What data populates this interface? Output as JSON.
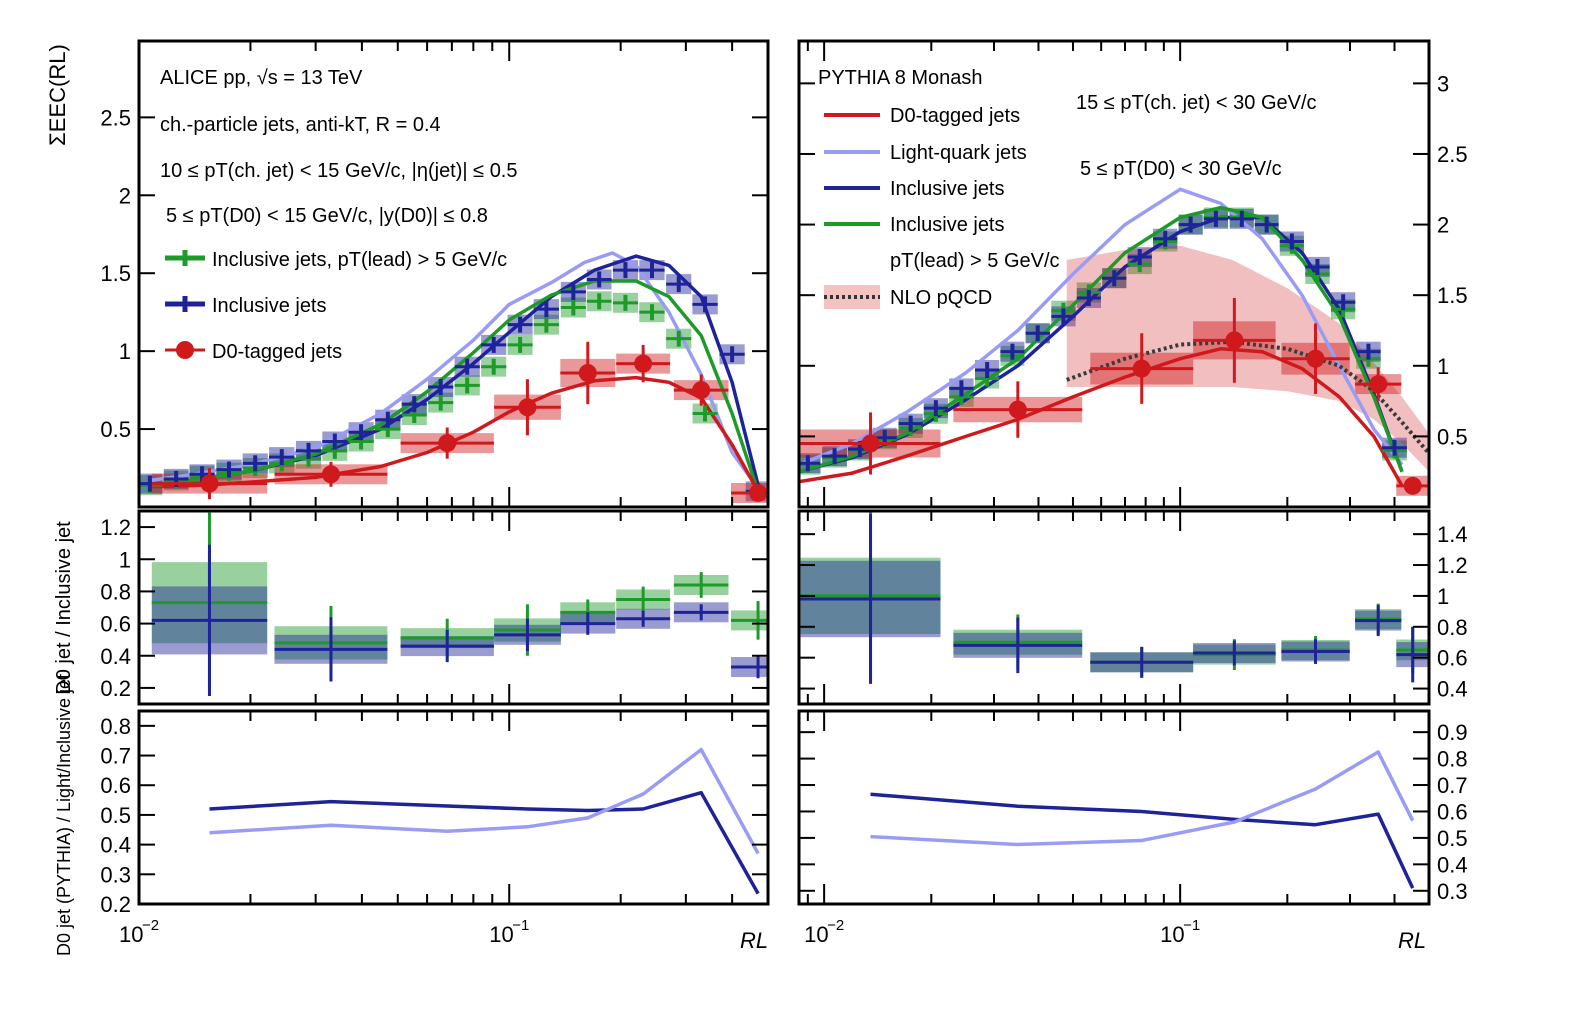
{
  "colors": {
    "d0": "#d0191d",
    "inclusive": "#1e2399",
    "inclusive_lead": "#1d9a27",
    "light": "#9a9bf5",
    "nlo": "#d0191d",
    "frame": "#000000"
  },
  "chart_data": [
    {
      "type": "line",
      "title": "ALICE pp, √s = 13 TeV — 10 ≤ pT(ch. jet) < 15 GeV/c",
      "panel": "top-left",
      "xscale": "log",
      "xlim": [
        0.01,
        0.5
      ],
      "ylim": [
        0,
        2.99
      ],
      "xlabel": "RL",
      "ylabel": "ΣEEC(RL)",
      "xticklabels": [
        "10^-2",
        "10^-1"
      ],
      "yticks": [
        0.5,
        1,
        1.5,
        2,
        2.5
      ],
      "annotations": {
        "experiment": "ALICE pp, √s = 13 TeV",
        "jets": "ch.-particle jets, anti-kT, R = 0.4",
        "jet_pt": "10 ≤ pT(ch. jet) < 15 GeV/c, |η(jet)| ≤ 0.5",
        "d0_pt": "5 ≤ pT(D0) < 15 GeV/c, |y(D0)| ≤ 0.8"
      },
      "legend": [
        "Inclusive jets, pT(lead) > 5 GeV/c",
        "Inclusive jets",
        "D0-tagged jets"
      ],
      "series": [
        {
          "name": "Inclusive jets, pT(lead) > 5 GeV/c",
          "kind": "points",
          "color_key": "inclusive_lead",
          "x": [
            0.0107,
            0.0126,
            0.0148,
            0.0175,
            0.0206,
            0.0243,
            0.0287,
            0.0338,
            0.0398,
            0.047,
            0.0554,
            0.0653,
            0.077,
            0.0908,
            0.107,
            0.126,
            0.149,
            0.175,
            0.206,
            0.243,
            0.287,
            0.338
          ],
          "values": [
            0.14,
            0.17,
            0.2,
            0.22,
            0.25,
            0.28,
            0.31,
            0.36,
            0.42,
            0.5,
            0.59,
            0.67,
            0.78,
            0.9,
            1.04,
            1.17,
            1.28,
            1.32,
            1.31,
            1.25,
            1.08,
            0.6
          ]
        },
        {
          "name": "Inclusive jets",
          "kind": "points",
          "color_key": "inclusive",
          "x": [
            0.0107,
            0.0126,
            0.0148,
            0.0175,
            0.0206,
            0.0243,
            0.0287,
            0.0338,
            0.0398,
            0.047,
            0.0554,
            0.0653,
            0.077,
            0.0908,
            0.107,
            0.126,
            0.149,
            0.175,
            0.206,
            0.243,
            0.287,
            0.338,
            0.4,
            0.47
          ],
          "values": [
            0.15,
            0.18,
            0.21,
            0.24,
            0.28,
            0.32,
            0.36,
            0.42,
            0.48,
            0.56,
            0.66,
            0.77,
            0.9,
            1.04,
            1.17,
            1.27,
            1.38,
            1.46,
            1.52,
            1.52,
            1.43,
            1.3,
            0.98,
            0.1
          ]
        },
        {
          "name": "D0-tagged jets",
          "kind": "points",
          "color_key": "d0",
          "x": [
            0.0155,
            0.033,
            0.068,
            0.112,
            0.163,
            0.23,
            0.33,
            0.47
          ],
          "values": [
            0.15,
            0.21,
            0.41,
            0.64,
            0.86,
            0.92,
            0.75,
            0.09
          ],
          "yerr": [
            0.1,
            0.08,
            0.1,
            0.18,
            0.2,
            0.12,
            0.1,
            0.04
          ]
        },
        {
          "name": "PYTHIA Light-quark",
          "kind": "line",
          "color_key": "light",
          "x": [
            0.0107,
            0.014,
            0.02,
            0.03,
            0.045,
            0.06,
            0.08,
            0.1,
            0.13,
            0.16,
            0.19,
            0.22,
            0.27,
            0.33,
            0.4,
            0.47
          ],
          "values": [
            0.17,
            0.21,
            0.27,
            0.38,
            0.6,
            0.82,
            1.07,
            1.3,
            1.44,
            1.57,
            1.63,
            1.55,
            1.25,
            0.85,
            0.35,
            0.12
          ]
        },
        {
          "name": "PYTHIA Inclusive",
          "kind": "line",
          "color_key": "inclusive",
          "x": [
            0.0107,
            0.015,
            0.02,
            0.03,
            0.045,
            0.06,
            0.08,
            0.1,
            0.13,
            0.17,
            0.22,
            0.27,
            0.33,
            0.4,
            0.47
          ],
          "values": [
            0.14,
            0.18,
            0.23,
            0.33,
            0.5,
            0.69,
            0.92,
            1.12,
            1.35,
            1.52,
            1.61,
            1.55,
            1.35,
            0.8,
            0.14
          ]
        },
        {
          "name": "PYTHIA Inclusive pT lead",
          "kind": "line",
          "color_key": "inclusive_lead",
          "x": [
            0.0107,
            0.015,
            0.02,
            0.03,
            0.045,
            0.06,
            0.08,
            0.1,
            0.13,
            0.17,
            0.22,
            0.27,
            0.33,
            0.4,
            0.47
          ],
          "values": [
            0.14,
            0.18,
            0.23,
            0.34,
            0.53,
            0.74,
            0.99,
            1.2,
            1.36,
            1.45,
            1.45,
            1.35,
            1.1,
            0.6,
            0.1
          ]
        },
        {
          "name": "PYTHIA D0-tagged",
          "kind": "line",
          "color_key": "d0",
          "x": [
            0.0107,
            0.015,
            0.02,
            0.03,
            0.045,
            0.06,
            0.08,
            0.1,
            0.13,
            0.17,
            0.22,
            0.27,
            0.33,
            0.4,
            0.47
          ],
          "values": [
            0.13,
            0.14,
            0.16,
            0.19,
            0.26,
            0.35,
            0.48,
            0.61,
            0.73,
            0.81,
            0.83,
            0.8,
            0.7,
            0.4,
            0.1
          ]
        }
      ]
    },
    {
      "type": "line",
      "title": "PYTHIA 8 Monash — 15 ≤ pT(ch. jet) < 30 GeV/c",
      "panel": "top-right",
      "xscale": "log",
      "xlim": [
        0.0085,
        0.5
      ],
      "ylim": [
        0,
        3.3
      ],
      "xlabel": "RL",
      "xticklabels": [
        "10^-2",
        "10^-1"
      ],
      "yticks": [
        0.5,
        1,
        1.5,
        2,
        2.5,
        3
      ],
      "annotations": {
        "generator": "PYTHIA 8 Monash",
        "jet_pt": "15 ≤ pT(ch. jet) < 30 GeV/c",
        "d0_pt": "5 ≤ pT(D0) < 30 GeV/c"
      },
      "legend": [
        "D0-tagged jets",
        "Light-quark jets",
        "Inclusive jets",
        "Inclusive jets",
        "pT(lead) > 5 GeV/c",
        "NLO pQCD"
      ],
      "series": [
        {
          "name": "Inclusive jets, pT(lead) > 5 GeV/c",
          "kind": "points",
          "color_key": "inclusive_lead",
          "x": [
            0.009,
            0.0107,
            0.0126,
            0.0148,
            0.0175,
            0.0206,
            0.0243,
            0.0287,
            0.0338,
            0.0398,
            0.047,
            0.0554,
            0.0653,
            0.077,
            0.0908,
            0.107,
            0.126,
            0.149,
            0.175,
            0.206,
            0.243,
            0.287,
            0.338,
            0.4
          ],
          "values": [
            0.3,
            0.35,
            0.4,
            0.48,
            0.56,
            0.66,
            0.78,
            0.91,
            1.07,
            1.23,
            1.39,
            1.52,
            1.62,
            1.72,
            1.88,
            2.0,
            2.05,
            2.05,
            2.0,
            1.85,
            1.65,
            1.4,
            1.05,
            0.4
          ]
        },
        {
          "name": "Inclusive jets",
          "kind": "points",
          "color_key": "inclusive",
          "x": [
            0.009,
            0.0107,
            0.0126,
            0.0148,
            0.0175,
            0.0206,
            0.0243,
            0.0287,
            0.0338,
            0.0398,
            0.047,
            0.0554,
            0.0653,
            0.077,
            0.0908,
            0.107,
            0.126,
            0.149,
            0.175,
            0.206,
            0.243,
            0.287,
            0.338,
            0.4
          ],
          "values": [
            0.31,
            0.36,
            0.41,
            0.49,
            0.59,
            0.7,
            0.84,
            0.97,
            1.1,
            1.23,
            1.35,
            1.48,
            1.62,
            1.77,
            1.9,
            2.0,
            2.04,
            2.04,
            2.0,
            1.88,
            1.7,
            1.45,
            1.1,
            0.42
          ]
        },
        {
          "name": "D0-tagged jets",
          "kind": "points",
          "color_key": "d0",
          "x": [
            0.0135,
            0.035,
            0.078,
            0.142,
            0.24,
            0.36,
            0.45
          ],
          "values": [
            0.45,
            0.69,
            0.98,
            1.18,
            1.05,
            0.87,
            0.15
          ],
          "yerr": [
            0.22,
            0.2,
            0.25,
            0.3,
            0.25,
            0.12,
            0.04
          ]
        },
        {
          "name": "PYTHIA Light-quark",
          "kind": "line",
          "color_key": "light",
          "x": [
            0.0085,
            0.012,
            0.017,
            0.025,
            0.035,
            0.05,
            0.07,
            0.1,
            0.13,
            0.17,
            0.22,
            0.28,
            0.35,
            0.42
          ],
          "values": [
            0.3,
            0.45,
            0.67,
            0.95,
            1.25,
            1.65,
            2.0,
            2.25,
            2.15,
            1.9,
            1.5,
            1.0,
            0.55,
            0.3
          ]
        },
        {
          "name": "PYTHIA Inclusive",
          "kind": "line",
          "color_key": "inclusive",
          "x": [
            0.0085,
            0.012,
            0.017,
            0.025,
            0.035,
            0.05,
            0.07,
            0.1,
            0.13,
            0.17,
            0.22,
            0.28,
            0.35,
            0.42
          ],
          "values": [
            0.25,
            0.35,
            0.51,
            0.76,
            1.0,
            1.35,
            1.7,
            1.95,
            2.05,
            2.05,
            1.8,
            1.4,
            0.8,
            0.25
          ]
        },
        {
          "name": "PYTHIA Inclusive pT lead",
          "kind": "line",
          "color_key": "inclusive_lead",
          "x": [
            0.0085,
            0.012,
            0.017,
            0.025,
            0.035,
            0.05,
            0.07,
            0.1,
            0.13,
            0.17,
            0.22,
            0.28,
            0.35,
            0.42
          ],
          "values": [
            0.25,
            0.36,
            0.52,
            0.8,
            1.05,
            1.43,
            1.8,
            2.05,
            2.12,
            2.05,
            1.75,
            1.35,
            0.78,
            0.25
          ]
        },
        {
          "name": "PYTHIA D0-tagged",
          "kind": "line",
          "color_key": "d0",
          "x": [
            0.0085,
            0.012,
            0.017,
            0.025,
            0.035,
            0.05,
            0.07,
            0.1,
            0.13,
            0.17,
            0.22,
            0.28,
            0.35,
            0.42
          ],
          "values": [
            0.18,
            0.24,
            0.36,
            0.5,
            0.62,
            0.78,
            0.92,
            1.05,
            1.12,
            1.1,
            0.98,
            0.78,
            0.5,
            0.15
          ]
        },
        {
          "name": "NLO pQCD",
          "kind": "band",
          "color_key": "nlo",
          "x": [
            0.048,
            0.07,
            0.1,
            0.14,
            0.2,
            0.28,
            0.35,
            0.42,
            0.5
          ],
          "values": [
            0.9,
            1.05,
            1.15,
            1.17,
            1.12,
            1.0,
            0.82,
            0.6,
            0.38
          ],
          "low": [
            0.85,
            0.85,
            0.85,
            0.85,
            0.82,
            0.75,
            0.62,
            0.45,
            0.25
          ],
          "high": [
            1.75,
            1.82,
            1.85,
            1.75,
            1.55,
            1.3,
            1.02,
            0.78,
            0.52
          ]
        }
      ]
    },
    {
      "type": "line",
      "panel": "mid-left",
      "ylabel": "D0 jet / Inclusive jet",
      "xscale": "log",
      "xlim": [
        0.01,
        0.5
      ],
      "ylim": [
        0.1,
        1.3
      ],
      "yticks": [
        0.2,
        0.4,
        0.6,
        0.8,
        1,
        1.2
      ],
      "series": [
        {
          "name": "ratio to inclusive (pT lead)",
          "kind": "points",
          "color_key": "inclusive_lead",
          "x": [
            0.0155,
            0.033,
            0.068,
            0.112,
            0.163,
            0.23,
            0.33,
            0.47
          ],
          "values": [
            0.73,
            0.48,
            0.51,
            0.56,
            0.67,
            0.75,
            0.84,
            0.62
          ],
          "yerr": [
            0.56,
            0.23,
            0.12,
            0.16,
            0.08,
            0.08,
            0.08,
            0.12
          ]
        },
        {
          "name": "ratio to inclusive",
          "kind": "points",
          "color_key": "inclusive",
          "x": [
            0.0155,
            0.033,
            0.068,
            0.112,
            0.163,
            0.23,
            0.33,
            0.47
          ],
          "values": [
            0.62,
            0.44,
            0.46,
            0.53,
            0.6,
            0.63,
            0.67,
            0.33
          ],
          "yerr": [
            0.47,
            0.2,
            0.1,
            0.1,
            0.07,
            0.05,
            0.05,
            0.07
          ]
        }
      ]
    },
    {
      "type": "line",
      "panel": "mid-right",
      "xscale": "log",
      "xlim": [
        0.0085,
        0.5
      ],
      "ylim": [
        0.3,
        1.55
      ],
      "yticks": [
        0.4,
        0.6,
        0.8,
        1,
        1.2,
        1.4
      ],
      "series": [
        {
          "name": "ratio to inclusive (pT lead)",
          "kind": "points",
          "color_key": "inclusive_lead",
          "x": [
            0.0135,
            0.035,
            0.078,
            0.142,
            0.24,
            0.36,
            0.45
          ],
          "values": [
            1.0,
            0.7,
            0.57,
            0.62,
            0.65,
            0.85,
            0.65
          ],
          "yerr": [
            0.55,
            0.18,
            0.1,
            0.1,
            0.09,
            0.1,
            0.15
          ]
        },
        {
          "name": "ratio to inclusive",
          "kind": "points",
          "color_key": "inclusive",
          "x": [
            0.0135,
            0.035,
            0.078,
            0.142,
            0.24,
            0.36,
            0.45
          ],
          "values": [
            0.98,
            0.68,
            0.57,
            0.63,
            0.64,
            0.84,
            0.62
          ],
          "yerr": [
            0.55,
            0.18,
            0.1,
            0.08,
            0.08,
            0.1,
            0.18
          ]
        }
      ]
    },
    {
      "type": "line",
      "panel": "bottom-left",
      "ylabel": "D0 jet (PYTHIA) / Light/Inclusive jet",
      "xscale": "log",
      "xlim": [
        0.01,
        0.5
      ],
      "ylim": [
        0.2,
        0.85
      ],
      "yticks": [
        0.2,
        0.3,
        0.4,
        0.5,
        0.6,
        0.7,
        0.8
      ],
      "series": [
        {
          "name": "D0/Inclusive (PYTHIA)",
          "kind": "line",
          "color_key": "inclusive",
          "x": [
            0.0155,
            0.033,
            0.068,
            0.112,
            0.163,
            0.23,
            0.33,
            0.47
          ],
          "values": [
            0.52,
            0.545,
            0.53,
            0.52,
            0.515,
            0.52,
            0.575,
            0.235
          ]
        },
        {
          "name": "D0/Light (PYTHIA)",
          "kind": "line",
          "color_key": "light",
          "x": [
            0.0155,
            0.033,
            0.068,
            0.112,
            0.163,
            0.23,
            0.33,
            0.47
          ],
          "values": [
            0.44,
            0.465,
            0.445,
            0.46,
            0.49,
            0.57,
            0.72,
            0.37
          ]
        }
      ]
    },
    {
      "type": "line",
      "panel": "bottom-right",
      "xscale": "log",
      "xlim": [
        0.0085,
        0.5
      ],
      "ylim": [
        0.25,
        0.98
      ],
      "yticks": [
        0.3,
        0.4,
        0.5,
        0.6,
        0.7,
        0.8,
        0.9
      ],
      "series": [
        {
          "name": "D0/Inclusive (PYTHIA)",
          "kind": "line",
          "color_key": "inclusive",
          "x": [
            0.0135,
            0.035,
            0.078,
            0.142,
            0.24,
            0.36,
            0.45
          ],
          "values": [
            0.665,
            0.62,
            0.6,
            0.57,
            0.55,
            0.59,
            0.31
          ]
        },
        {
          "name": "D0/Light (PYTHIA)",
          "kind": "line",
          "color_key": "light",
          "x": [
            0.0135,
            0.035,
            0.078,
            0.142,
            0.24,
            0.36,
            0.45
          ],
          "values": [
            0.505,
            0.475,
            0.49,
            0.56,
            0.685,
            0.825,
            0.565
          ]
        }
      ]
    }
  ],
  "labels": {
    "xlabel": "RL",
    "ylabel_top": "ΣEEC(RL)",
    "ylabel_mid": "D0 jet / Inclusive jet",
    "ylabel_bottom": "D0 jet (PYTHIA) / Light/Inclusive jet"
  }
}
